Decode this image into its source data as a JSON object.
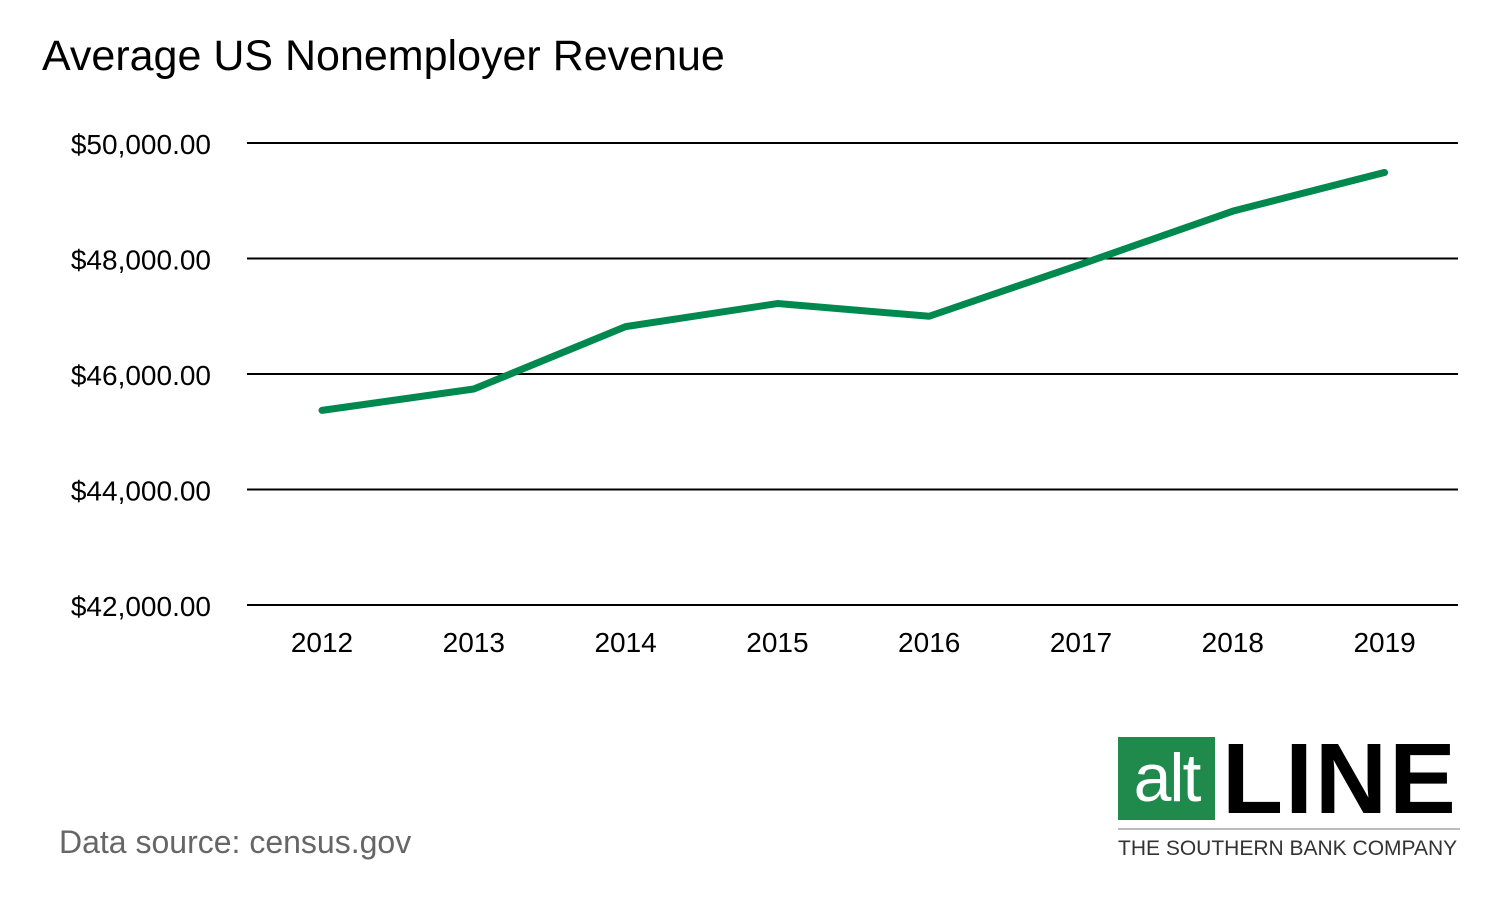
{
  "chart_data": {
    "type": "line",
    "title": "Average US Nonemployer Revenue",
    "xlabel": "",
    "ylabel": "",
    "categories": [
      "2012",
      "2013",
      "2014",
      "2015",
      "2016",
      "2017",
      "2018",
      "2019"
    ],
    "series": [
      {
        "values": [
          45370,
          45740,
          46820,
          47220,
          47000,
          47900,
          48820,
          49490
        ],
        "color": "#00894f"
      }
    ],
    "ylim": [
      42000,
      50000
    ],
    "yticks": [
      42000,
      44000,
      46000,
      48000,
      50000
    ],
    "ytick_labels": [
      "$42,000.00",
      "$44,000.00",
      "$46,000.00",
      "$48,000.00",
      "$50,000.00"
    ],
    "grid": true,
    "legend": "none"
  },
  "source_note": "Data source: census.gov",
  "logo": {
    "alt": "alt",
    "line": "LINE",
    "tagline": "THE SOUTHERN BANK COMPANY",
    "color": "#1f8a4c"
  }
}
